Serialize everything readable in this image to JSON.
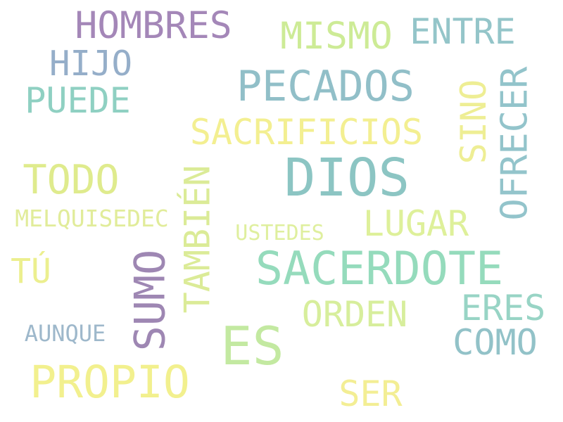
{
  "words": [
    {
      "text": "DIOS",
      "color": "#8cc5c3",
      "vertical": false
    },
    {
      "text": "SACERDOTE",
      "color": "#95dbbc",
      "vertical": false
    },
    {
      "text": "ES",
      "color": "#c3e9a1",
      "vertical": false
    },
    {
      "text": "PECADOS",
      "color": "#91bfc8",
      "vertical": false
    },
    {
      "text": "SUMO",
      "color": "#9e87b3",
      "vertical": true
    },
    {
      "text": "PROPIO",
      "color": "#f2f08e",
      "vertical": false
    },
    {
      "text": "TODO",
      "color": "#dfeb8d",
      "vertical": false
    },
    {
      "text": "SACRIFICIOS",
      "color": "#f3ef91",
      "vertical": false
    },
    {
      "text": "HOMBRES",
      "color": "#a487b8",
      "vertical": false
    },
    {
      "text": "HIJO",
      "color": "#95aec9",
      "vertical": false
    },
    {
      "text": "ENTRE",
      "color": "#94c5c9",
      "vertical": false
    },
    {
      "text": "MISMO",
      "color": "#cdeb96",
      "vertical": false
    },
    {
      "text": "PUEDE",
      "color": "#8fd0c2",
      "vertical": false
    },
    {
      "text": "OFRECER",
      "color": "#93c4cb",
      "vertical": true
    },
    {
      "text": "SINO",
      "color": "#eeee94",
      "vertical": true
    },
    {
      "text": "TAMBIÉN",
      "color": "#dbeb97",
      "vertical": true
    },
    {
      "text": "LUGAR",
      "color": "#def09a",
      "vertical": false
    },
    {
      "text": "ORDEN",
      "color": "#d7ee9c",
      "vertical": false
    },
    {
      "text": "ERES",
      "color": "#98d4c5",
      "vertical": false
    },
    {
      "text": "COMO",
      "color": "#92c2c8",
      "vertical": false
    },
    {
      "text": "SER",
      "color": "#f3ee94",
      "vertical": false
    },
    {
      "text": "TÚ",
      "color": "#ecef8f",
      "vertical": false
    },
    {
      "text": "MELQUISEDEC",
      "color": "#e1ec9a",
      "vertical": false
    },
    {
      "text": "USTEDES",
      "color": "#dfef9e",
      "vertical": false
    },
    {
      "text": "AUNQUE",
      "color": "#9eb8cb",
      "vertical": false
    }
  ]
}
